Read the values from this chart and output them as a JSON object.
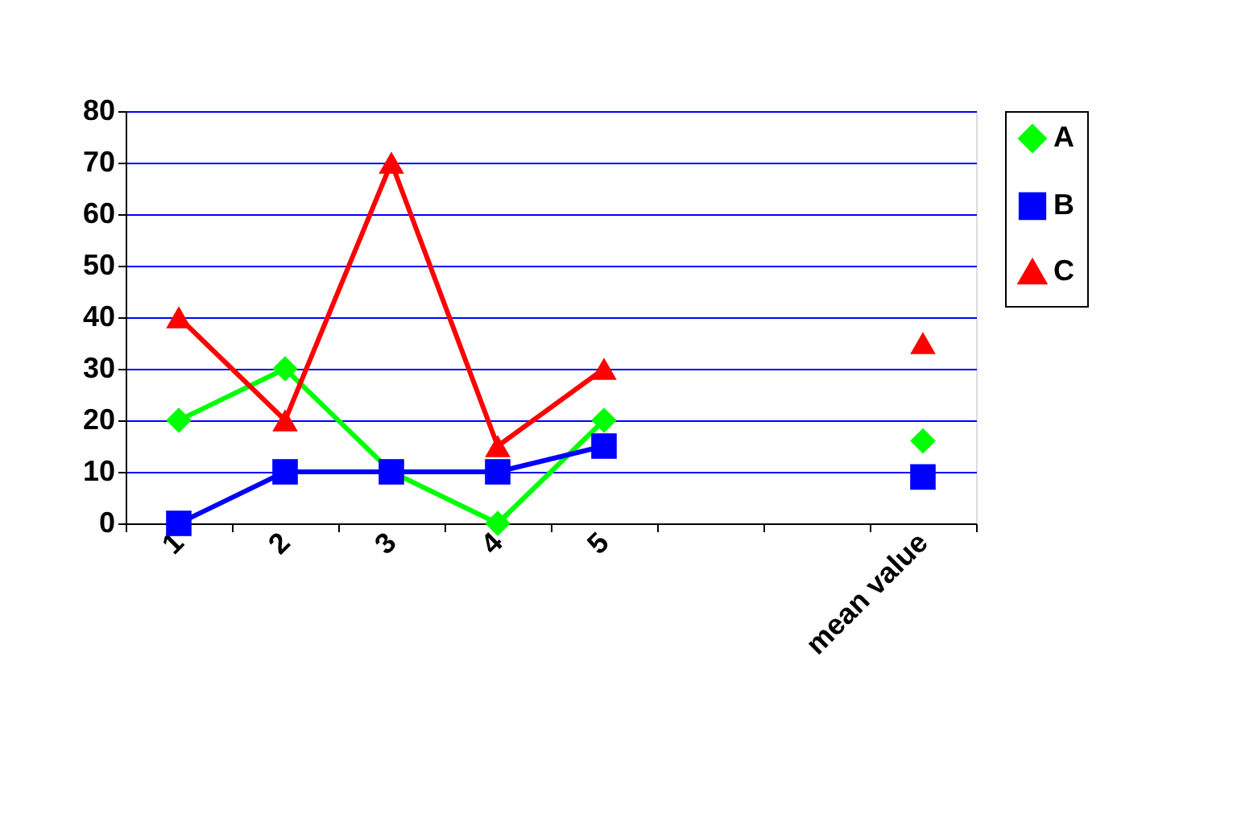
{
  "chart_data": {
    "type": "line",
    "categories": [
      "1",
      "2",
      "3",
      "4",
      "5",
      null,
      null,
      "mean value"
    ],
    "series": [
      {
        "name": "A",
        "color": "#00ff00",
        "marker": "diamond",
        "values": [
          20,
          30,
          10,
          0,
          20,
          null,
          null,
          16
        ]
      },
      {
        "name": "B",
        "color": "#0000ff",
        "marker": "square",
        "values": [
          0,
          10,
          10,
          10,
          15,
          null,
          null,
          9
        ]
      },
      {
        "name": "C",
        "color": "#ff0000",
        "marker": "triangle",
        "values": [
          40,
          20,
          70,
          15,
          30,
          null,
          null,
          35
        ]
      }
    ],
    "ylim": [
      0,
      80
    ],
    "yticks": [
      0,
      10,
      20,
      30,
      40,
      50,
      60,
      70,
      80
    ],
    "grid": "y",
    "legend": "right",
    "line_style": "solid"
  }
}
